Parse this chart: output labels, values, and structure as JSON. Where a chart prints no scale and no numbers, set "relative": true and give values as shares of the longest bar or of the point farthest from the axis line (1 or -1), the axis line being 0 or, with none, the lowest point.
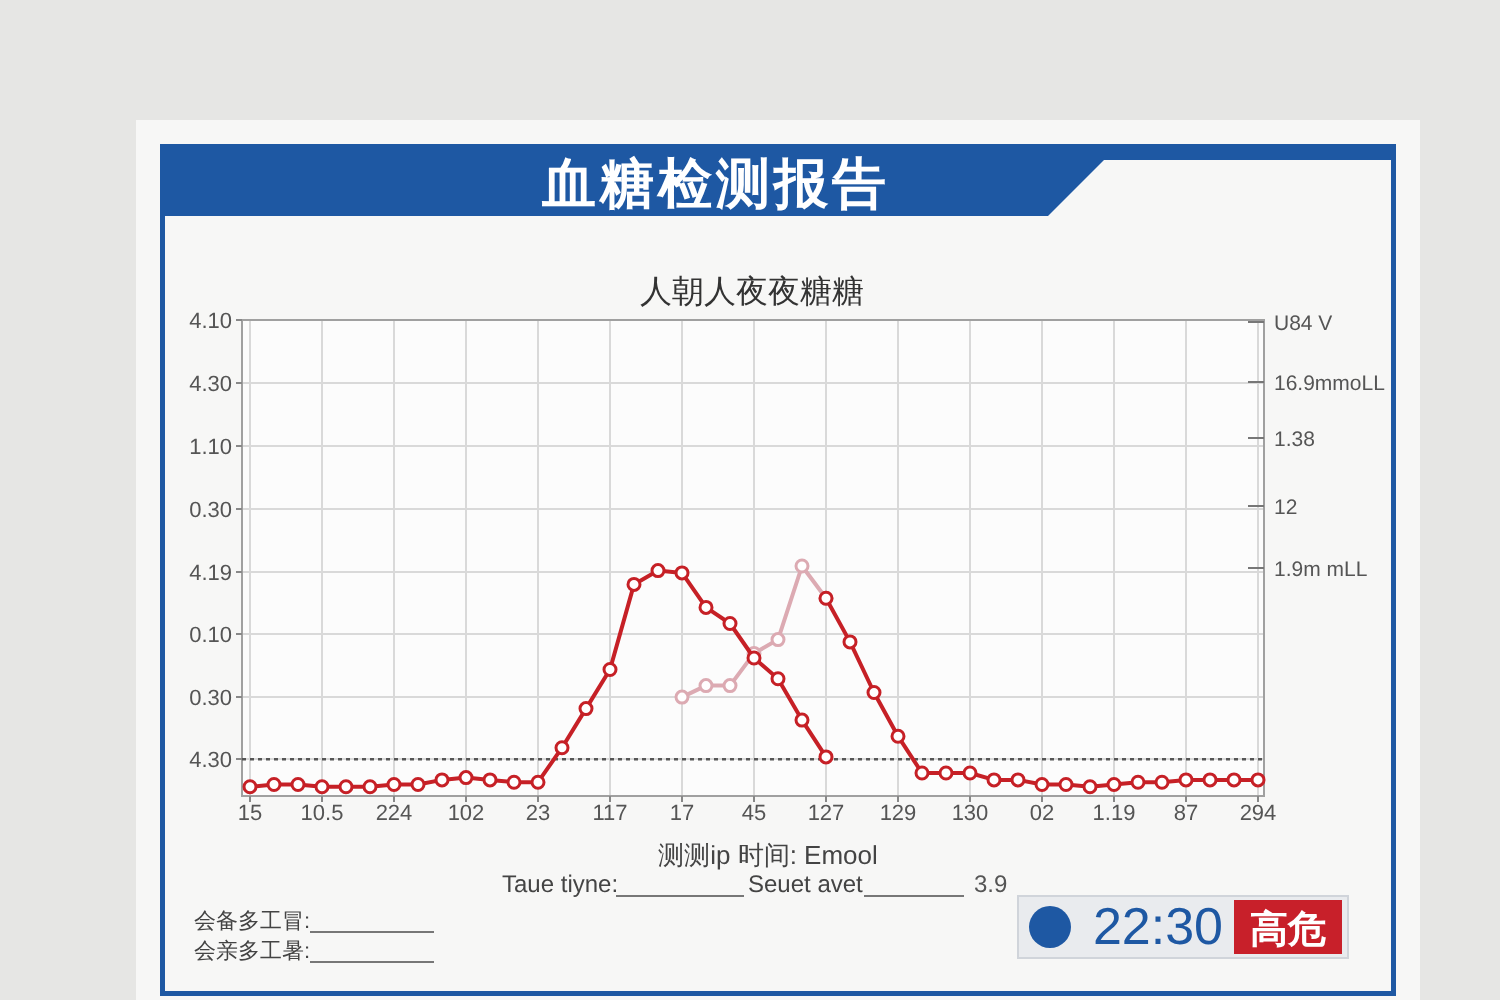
{
  "chart_data": {
    "type": "line",
    "title": "血糖检测报告",
    "subtitle": "人朝人夜夜糖糖",
    "xlabel": "测测ip 时间: Emool",
    "relative": true,
    "categories": [
      "15",
      null,
      null,
      "10.5",
      null,
      null,
      "224",
      null,
      null,
      "102",
      null,
      null,
      "23",
      null,
      null,
      "117",
      null,
      null,
      "17",
      null,
      null,
      "45",
      null,
      null,
      "127",
      null,
      null,
      "129",
      null,
      null,
      "130",
      null,
      null,
      "02",
      null,
      null,
      "1.19",
      null,
      null,
      "87",
      null,
      null,
      "294"
    ],
    "grid": true,
    "marker": "circle",
    "ref_lines": [
      {
        "axis": "y",
        "value": 0.16,
        "color": "#555555",
        "line_style": "dotted"
      }
    ],
    "series": [
      {
        "color": "#dcaab2",
        "values": [
          null,
          null,
          null,
          null,
          null,
          null,
          null,
          null,
          null,
          null,
          null,
          null,
          null,
          null,
          null,
          null,
          null,
          null,
          0.43,
          0.48,
          0.48,
          0.62,
          0.68,
          1.0,
          0.86,
          null,
          null,
          null,
          null,
          null,
          null,
          null,
          null,
          null,
          null,
          null,
          null,
          null,
          null,
          null,
          null,
          null,
          null
        ]
      },
      {
        "color": "#c62026",
        "values": [
          0.04,
          0.05,
          0.05,
          0.04,
          0.04,
          0.04,
          0.05,
          0.05,
          0.07,
          0.08,
          0.07,
          0.06,
          0.06,
          0.21,
          0.38,
          0.55,
          0.92,
          0.98,
          0.97,
          0.82,
          0.75,
          0.6,
          0.51,
          0.33,
          0.17,
          null,
          null,
          null,
          null,
          null,
          null,
          null,
          null,
          null,
          null,
          null,
          null,
          null,
          null,
          null,
          null,
          null,
          null
        ]
      },
      {
        "color": "#c62026",
        "values": [
          null,
          null,
          null,
          null,
          null,
          null,
          null,
          null,
          null,
          null,
          null,
          null,
          null,
          null,
          null,
          null,
          null,
          null,
          null,
          null,
          null,
          null,
          null,
          null,
          0.86,
          0.67,
          0.45,
          0.26,
          0.1,
          0.1,
          0.1,
          0.07,
          0.07,
          0.05,
          0.05,
          0.04,
          0.05,
          0.06,
          0.06,
          0.07,
          0.07,
          0.07,
          0.07
        ]
      }
    ],
    "annotations": [
      "4.10",
      "4.30",
      "1.10",
      "0.30",
      "4.19",
      "0.10",
      "0.30",
      "4.30",
      "U84 V",
      "16.9mmoLL",
      "1.38",
      "12",
      "1.9m mLL",
      "Taue tiyne:",
      "Seuet avet",
      "3.9",
      "会备多工冒:",
      "会亲多工暑:",
      "22:30",
      "高危"
    ]
  }
}
